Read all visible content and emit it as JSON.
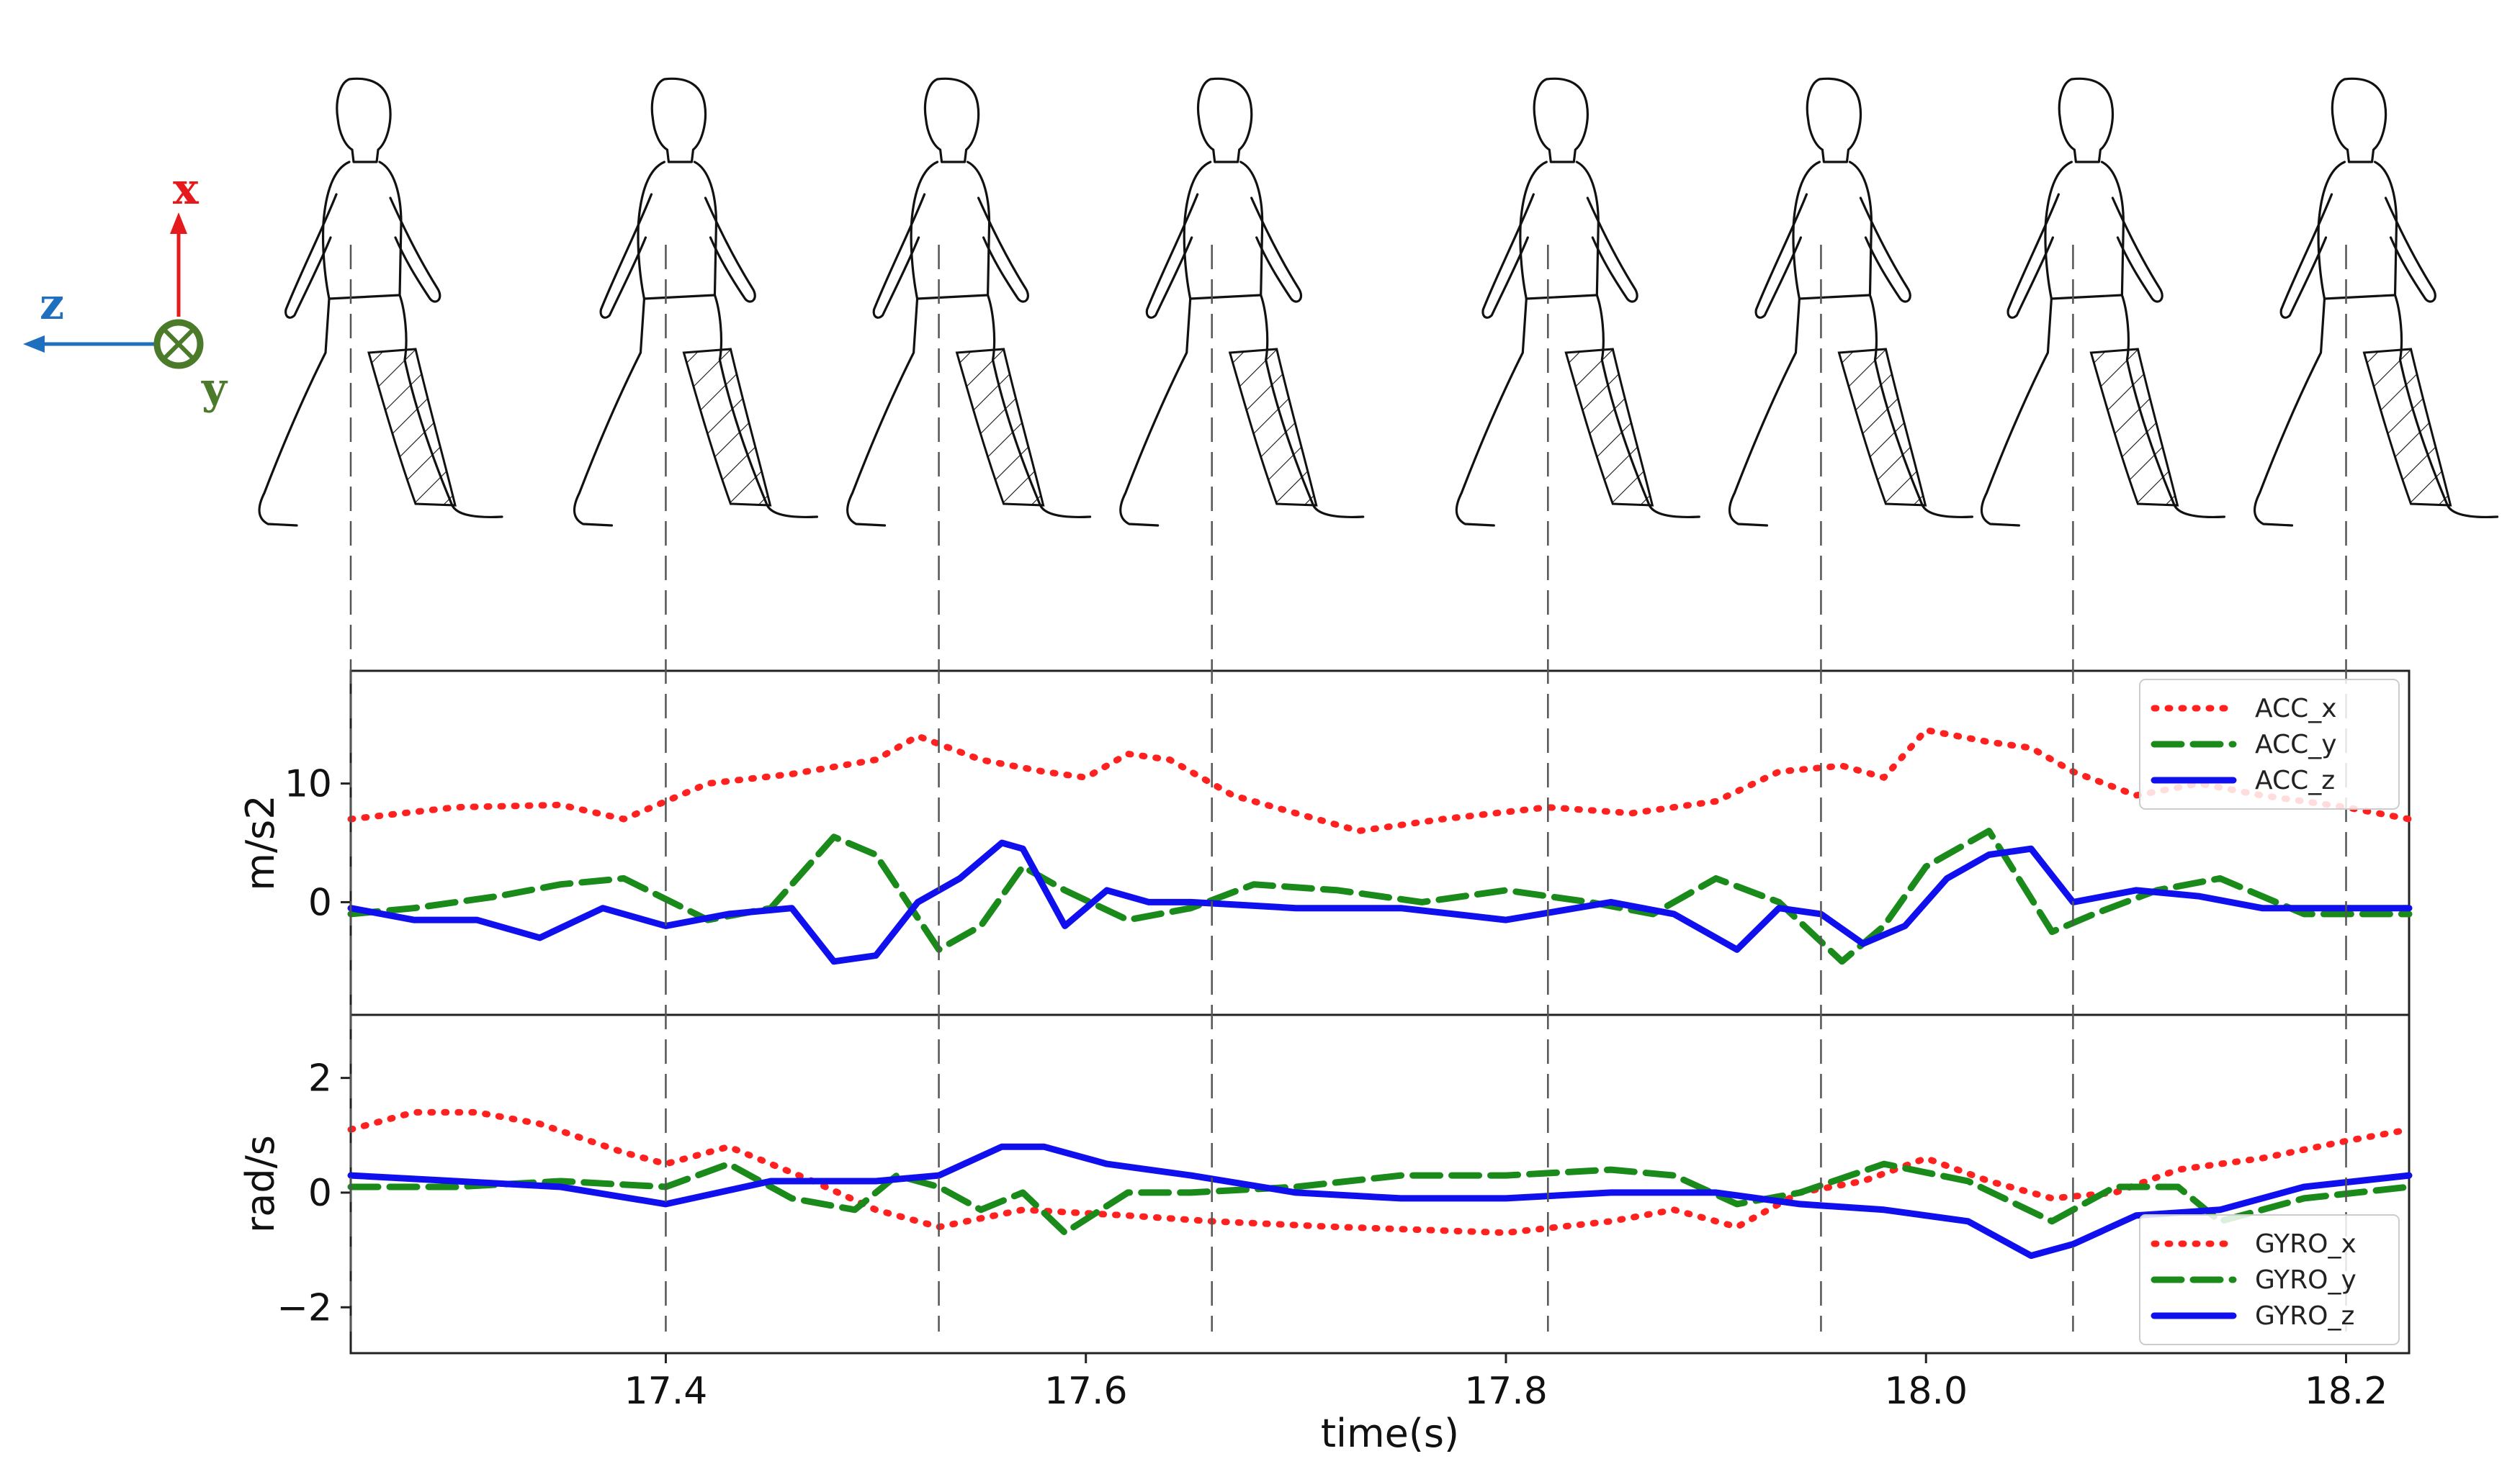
{
  "axis_glyph": {
    "x_label": "x",
    "y_label": "y",
    "z_label": "z",
    "x_color": "#e41a1c",
    "y_color": "#4a7a2a",
    "z_color": "#1f6fbf"
  },
  "figures": {
    "count": 8,
    "description_icon": "walking-child-outline-icon"
  },
  "chart_data": [
    {
      "type": "line",
      "panel": "accelerometer",
      "ylabel": "m/s2",
      "xlabel": "",
      "xlim": [
        17.25,
        18.23
      ],
      "ylim": [
        -9.5,
        19.5
      ],
      "yticks": [
        0,
        10
      ],
      "ytick_labels": [
        "0",
        "10"
      ],
      "legend": "top-right",
      "series": [
        {
          "name": "ACC_x",
          "label": "ACC_x",
          "color": "#ff2020",
          "style": "dotted",
          "x": [
            17.25,
            17.3,
            17.35,
            17.38,
            17.42,
            17.46,
            17.5,
            17.52,
            17.55,
            17.58,
            17.6,
            17.62,
            17.64,
            17.67,
            17.7,
            17.73,
            17.77,
            17.82,
            17.86,
            17.9,
            17.93,
            17.96,
            17.98,
            18.0,
            18.03,
            18.05,
            18.07,
            18.1,
            18.13,
            18.16,
            18.2,
            18.23
          ],
          "y": [
            7,
            8,
            8.2,
            7,
            10,
            10.8,
            12,
            14,
            12,
            11,
            10.5,
            12.5,
            12,
            9,
            7.5,
            6,
            7,
            8,
            7.5,
            8.5,
            11,
            11.5,
            10.5,
            14.5,
            13.5,
            13,
            11,
            9,
            10,
            9,
            8,
            7
          ]
        },
        {
          "name": "ACC_y",
          "label": "ACC_y",
          "color": "#1a8a1a",
          "style": "dashed",
          "x": [
            17.25,
            17.28,
            17.32,
            17.35,
            17.38,
            17.42,
            17.45,
            17.48,
            17.5,
            17.53,
            17.55,
            17.57,
            17.59,
            17.62,
            17.65,
            17.68,
            17.72,
            17.76,
            17.8,
            17.84,
            17.87,
            17.9,
            17.93,
            17.96,
            17.98,
            18.0,
            18.03,
            18.06,
            18.08,
            18.11,
            18.14,
            18.18,
            18.23
          ],
          "y": [
            -1,
            -0.5,
            0.5,
            1.5,
            2,
            -1.5,
            -0.5,
            5.5,
            4,
            -4,
            -2,
            3,
            1,
            -1.5,
            -0.5,
            1.5,
            1,
            0,
            1,
            0,
            -1,
            2,
            0,
            -5,
            -2,
            3,
            6,
            -2.5,
            -1,
            1,
            2,
            -1,
            -1
          ]
        },
        {
          "name": "ACC_z",
          "label": "ACC_z",
          "color": "#1010ee",
          "style": "solid",
          "x": [
            17.25,
            17.28,
            17.31,
            17.34,
            17.37,
            17.4,
            17.43,
            17.46,
            17.48,
            17.5,
            17.52,
            17.54,
            17.56,
            17.57,
            17.59,
            17.61,
            17.63,
            17.65,
            17.7,
            17.75,
            17.8,
            17.85,
            17.88,
            17.91,
            17.93,
            17.95,
            17.97,
            17.99,
            18.01,
            18.03,
            18.05,
            18.07,
            18.1,
            18.13,
            18.16,
            18.2,
            18.23
          ],
          "y": [
            -0.5,
            -1.5,
            -1.5,
            -3,
            -0.5,
            -2,
            -1,
            -0.5,
            -5,
            -4.5,
            0,
            2,
            5,
            4.5,
            -2,
            1,
            0,
            0,
            -0.5,
            -0.5,
            -1.5,
            0,
            -1,
            -4,
            -0.5,
            -1,
            -3.5,
            -2,
            2,
            4,
            4.5,
            0,
            1,
            0.5,
            -0.5,
            -0.5,
            -0.5
          ]
        }
      ]
    },
    {
      "type": "line",
      "panel": "gyroscope",
      "ylabel": "rad/s",
      "xlabel": "time(s)",
      "xlim": [
        17.25,
        18.23
      ],
      "ylim": [
        -2.8,
        3.1
      ],
      "yticks": [
        -2,
        0,
        2
      ],
      "ytick_labels": [
        "−2",
        "0",
        "2"
      ],
      "xticks": [
        17.4,
        17.6,
        17.8,
        18.0,
        18.2
      ],
      "xtick_labels": [
        "17.4",
        "17.6",
        "17.8",
        "18.0",
        "18.2"
      ],
      "legend": "bottom-right",
      "series": [
        {
          "name": "GYRO_x",
          "label": "GYRO_x",
          "color": "#ff2020",
          "style": "dotted",
          "x": [
            17.25,
            17.28,
            17.31,
            17.34,
            17.38,
            17.4,
            17.43,
            17.47,
            17.5,
            17.53,
            17.57,
            17.62,
            17.66,
            17.72,
            17.8,
            17.85,
            17.88,
            17.91,
            17.94,
            17.97,
            18.0,
            18.03,
            18.06,
            18.09,
            18.12,
            18.16,
            18.2,
            18.23
          ],
          "y": [
            1.1,
            1.4,
            1.4,
            1.2,
            0.7,
            0.5,
            0.8,
            0.2,
            -0.3,
            -0.6,
            -0.3,
            -0.4,
            -0.5,
            -0.6,
            -0.7,
            -0.5,
            -0.3,
            -0.6,
            0,
            0.2,
            0.6,
            0.2,
            -0.1,
            0,
            0.4,
            0.6,
            0.9,
            1.1
          ]
        },
        {
          "name": "GYRO_y",
          "label": "GYRO_y",
          "color": "#1a8a1a",
          "style": "dashed",
          "x": [
            17.25,
            17.3,
            17.35,
            17.4,
            17.43,
            17.46,
            17.49,
            17.51,
            17.53,
            17.55,
            17.57,
            17.59,
            17.62,
            17.65,
            17.7,
            17.75,
            17.8,
            17.85,
            17.88,
            17.91,
            17.94,
            17.98,
            18.02,
            18.06,
            18.09,
            18.12,
            18.14,
            18.18,
            18.23
          ],
          "y": [
            0.1,
            0.1,
            0.2,
            0.1,
            0.5,
            -0.1,
            -0.3,
            0.3,
            0.1,
            -0.3,
            0,
            -0.7,
            0,
            0,
            0.1,
            0.3,
            0.3,
            0.4,
            0.3,
            -0.2,
            0,
            0.5,
            0.2,
            -0.5,
            0.1,
            0.1,
            -0.5,
            -0.1,
            0.1
          ]
        },
        {
          "name": "GYRO_z",
          "label": "GYRO_z",
          "color": "#1010ee",
          "style": "solid",
          "x": [
            17.25,
            17.3,
            17.35,
            17.4,
            17.45,
            17.5,
            17.53,
            17.56,
            17.58,
            17.61,
            17.65,
            17.7,
            17.75,
            17.8,
            17.85,
            17.9,
            17.94,
            17.98,
            18.02,
            18.05,
            18.07,
            18.1,
            18.14,
            18.18,
            18.23
          ],
          "y": [
            0.3,
            0.2,
            0.1,
            -0.2,
            0.2,
            0.2,
            0.3,
            0.8,
            0.8,
            0.5,
            0.3,
            0,
            -0.1,
            -0.1,
            0,
            0,
            -0.2,
            -0.3,
            -0.5,
            -1.1,
            -0.9,
            -0.4,
            -0.3,
            0.1,
            0.3
          ]
        }
      ]
    }
  ],
  "event_times": [
    17.25,
    17.4,
    17.53,
    17.66,
    17.82,
    17.95,
    18.07,
    18.2
  ]
}
